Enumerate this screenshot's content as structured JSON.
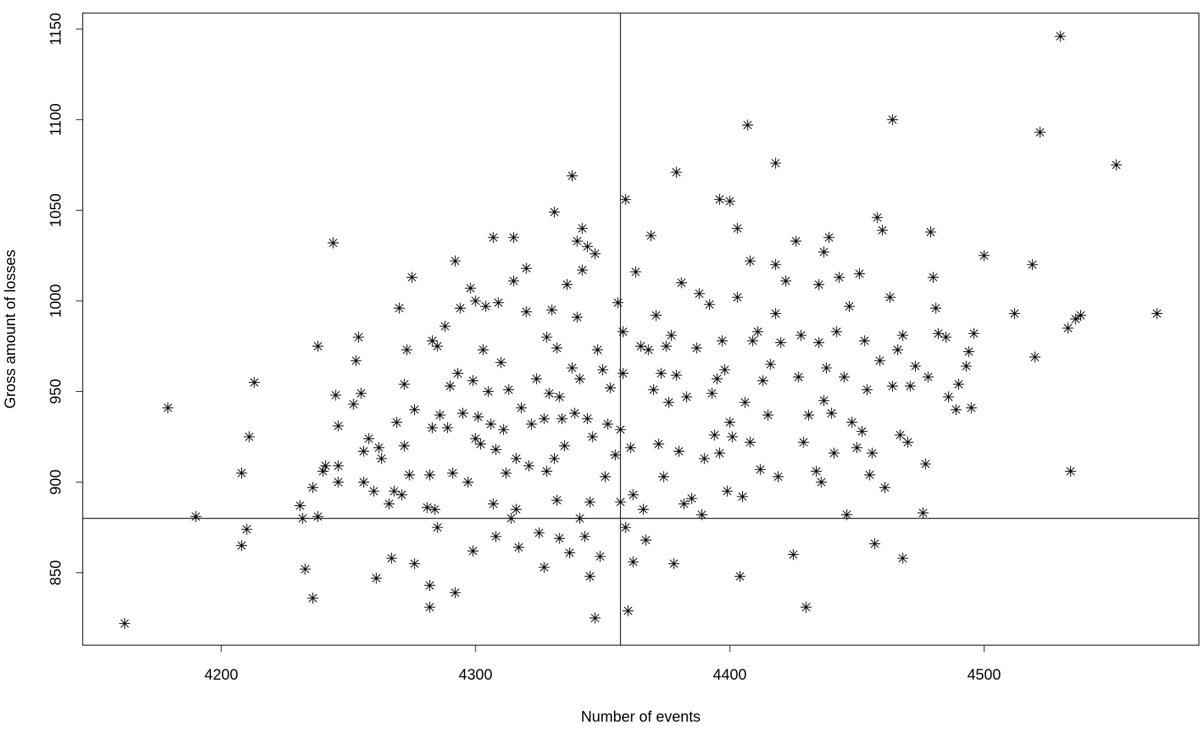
{
  "chart_data": {
    "type": "scatter",
    "x_label": "Number of events",
    "y_label": "Gross amount of losses",
    "xlim": [
      4145.5,
      4584.5
    ],
    "ylim": [
      810,
      1158.8
    ],
    "xticks": [
      4200,
      4300,
      4400,
      4500
    ],
    "yticks": [
      850,
      900,
      950,
      1000,
      1050,
      1100,
      1150
    ],
    "vline": 4357,
    "hline": 880,
    "color": "#000000",
    "marker": "asterisk",
    "series": [
      {
        "x": [
          4162,
          4179,
          4190,
          4208,
          4208,
          4210,
          4211,
          4213,
          4231,
          4232,
          4233,
          4236,
          4236,
          4238,
          4238,
          4240,
          4241,
          4244,
          4245,
          4246,
          4246,
          4246,
          4252,
          4253,
          4254,
          4255,
          4256,
          4256,
          4258,
          4260,
          4261,
          4262,
          4263,
          4266,
          4267,
          4268,
          4269,
          4270,
          4271,
          4272,
          4272,
          4273,
          4274,
          4275,
          4276,
          4276,
          4281,
          4282,
          4282,
          4282,
          4283,
          4283,
          4284,
          4285,
          4285,
          4286,
          4288,
          4289,
          4290,
          4291,
          4292,
          4292,
          4293,
          4294,
          4295,
          4297,
          4298,
          4299,
          4299,
          4300,
          4300,
          4301,
          4302,
          4303,
          4304,
          4305,
          4306,
          4307,
          4307,
          4308,
          4308,
          4309,
          4310,
          4311,
          4312,
          4313,
          4314,
          4315,
          4315,
          4316,
          4316,
          4317,
          4318,
          4320,
          4320,
          4321,
          4322,
          4324,
          4325,
          4327,
          4327,
          4328,
          4328,
          4329,
          4330,
          4331,
          4331,
          4332,
          4332,
          4333,
          4333,
          4334,
          4335,
          4336,
          4337,
          4338,
          4338,
          4339,
          4340,
          4340,
          4341,
          4341,
          4342,
          4342,
          4343,
          4344,
          4344,
          4345,
          4345,
          4346,
          4347,
          4347,
          4348,
          4349,
          4350,
          4351,
          4352,
          4353,
          4355,
          4356,
          4357,
          4357,
          4358,
          4358,
          4359,
          4359,
          4360,
          4361,
          4362,
          4362,
          4363,
          4365,
          4366,
          4367,
          4368,
          4369,
          4370,
          4371,
          4372,
          4373,
          4374,
          4375,
          4376,
          4377,
          4378,
          4379,
          4379,
          4380,
          4381,
          4382,
          4383,
          4385,
          4387,
          4388,
          4389,
          4390,
          4392,
          4393,
          4394,
          4395,
          4396,
          4396,
          4397,
          4398,
          4399,
          4400,
          4400,
          4401,
          4403,
          4403,
          4404,
          4405,
          4406,
          4407,
          4408,
          4408,
          4409,
          4411,
          4412,
          4413,
          4415,
          4416,
          4418,
          4418,
          4418,
          4419,
          4420,
          4422,
          4425,
          4426,
          4427,
          4428,
          4429,
          4430,
          4431,
          4434,
          4435,
          4435,
          4436,
          4437,
          4437,
          4438,
          4439,
          4440,
          4441,
          4442,
          4443,
          4445,
          4446,
          4447,
          4448,
          4450,
          4451,
          4452,
          4453,
          4454,
          4455,
          4456,
          4457,
          4458,
          4459,
          4460,
          4461,
          4463,
          4464,
          4464,
          4466,
          4467,
          4468,
          4468,
          4470,
          4471,
          4473,
          4476,
          4477,
          4478,
          4479,
          4480,
          4481,
          4482,
          4485,
          4486,
          4489,
          4490,
          4493,
          4494,
          4495,
          4496,
          4500,
          4512,
          4519,
          4520,
          4522,
          4530,
          4533,
          4534,
          4536,
          4538,
          4552,
          4568
        ],
        "values": [
          822,
          941,
          881,
          905,
          865,
          874,
          925,
          955,
          887,
          880,
          852,
          897,
          836,
          881,
          975,
          906,
          909,
          1032,
          948,
          931,
          909,
          900,
          943,
          967,
          980,
          949,
          900,
          917,
          924,
          895,
          847,
          919,
          913,
          888,
          858,
          895,
          933,
          996,
          893,
          920,
          954,
          973,
          904,
          1013,
          940,
          855,
          886,
          904,
          843,
          831,
          978,
          930,
          885,
          875,
          975,
          937,
          986,
          930,
          953,
          905,
          839,
          1022,
          960,
          996,
          938,
          900,
          1007,
          956,
          862,
          1000,
          924,
          936,
          921,
          973,
          997,
          950,
          932,
          1035,
          888,
          870,
          918,
          999,
          966,
          929,
          905,
          951,
          880,
          1035,
          1011,
          913,
          885,
          864,
          941,
          1018,
          994,
          909,
          932,
          957,
          872,
          935,
          853,
          980,
          906,
          949,
          995,
          1049,
          913,
          974,
          890,
          947,
          869,
          935,
          920,
          1009,
          861,
          1069,
          963,
          938,
          1033,
          991,
          957,
          880,
          1040,
          1017,
          870,
          935,
          1030,
          848,
          889,
          925,
          825,
          1026,
          973,
          859,
          962,
          903,
          932,
          952,
          915,
          999,
          929,
          889,
          983,
          960,
          1056,
          875,
          829,
          919,
          856,
          893,
          1016,
          975,
          885,
          868,
          973,
          1036,
          951,
          992,
          921,
          960,
          903,
          975,
          944,
          981,
          855,
          1071,
          959,
          917,
          1010,
          888,
          947,
          891,
          974,
          1004,
          882,
          913,
          998,
          949,
          926,
          957,
          1056,
          916,
          978,
          962,
          895,
          1055,
          933,
          925,
          1040,
          1002,
          848,
          892,
          944,
          1097,
          922,
          1022,
          978,
          983,
          907,
          956,
          937,
          965,
          1076,
          1020,
          993,
          903,
          977,
          1011,
          860,
          1033,
          958,
          981,
          922,
          831,
          937,
          906,
          1009,
          977,
          900,
          1027,
          945,
          963,
          1035,
          938,
          916,
          983,
          1013,
          958,
          882,
          997,
          933,
          919,
          1015,
          928,
          978,
          951,
          904,
          916,
          866,
          1046,
          967,
          1039,
          897,
          1002,
          1100,
          953,
          973,
          926,
          858,
          981,
          922,
          953,
          964,
          883,
          910,
          958,
          1038,
          1013,
          996,
          982,
          980,
          947,
          940,
          954,
          964,
          972,
          941,
          982,
          1025,
          993,
          1020,
          969,
          1093,
          1146,
          985,
          906,
          990,
          992,
          1075,
          993
        ]
      }
    ]
  }
}
